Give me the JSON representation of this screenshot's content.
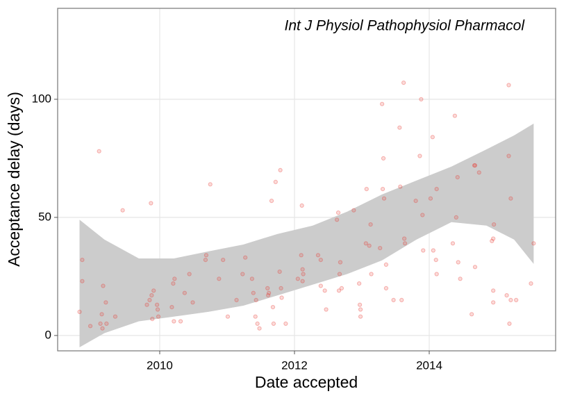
{
  "chart_data": {
    "type": "scatter",
    "annotation": "Int J Physiol Pathophysiol Pharmacol",
    "x_label": "Date accepted",
    "y_label": "Acceptance delay (days)",
    "xlim": [
      2008.485,
      2015.876
    ],
    "ylim": [
      -6.5,
      138.5
    ],
    "xticks": [
      2010,
      2012,
      2014
    ],
    "yticks": [
      0,
      50,
      100
    ],
    "grid": true,
    "color": "#e8352e",
    "x": [
      2008.81,
      2008.85,
      2008.85,
      2008.97,
      2009.1,
      2009.12,
      2009.14,
      2009.15,
      2009.16,
      2009.2,
      2009.21,
      2009.34,
      2009.45,
      2009.81,
      2009.85,
      2009.87,
      2009.88,
      2009.89,
      2009.91,
      2009.96,
      2009.97,
      2009.98,
      2010.18,
      2010.2,
      2010.22,
      2010.21,
      2010.31,
      2010.37,
      2010.44,
      2010.49,
      2010.68,
      2010.69,
      2010.75,
      2010.88,
      2010.94,
      2011.01,
      2011.14,
      2011.23,
      2011.27,
      2011.37,
      2011.39,
      2011.42,
      2011.43,
      2011.45,
      2011.48,
      2011.6,
      2011.61,
      2011.62,
      2011.66,
      2011.68,
      2011.69,
      2011.72,
      2011.78,
      2011.79,
      2011.8,
      2011.81,
      2011.87,
      2012.05,
      2012.1,
      2012.11,
      2012.12,
      2012.12,
      2012.13,
      2012.35,
      2012.39,
      2012.39,
      2012.45,
      2012.47,
      2012.63,
      2012.65,
      2012.66,
      2012.67,
      2012.68,
      2012.7,
      2012.88,
      2012.96,
      2012.97,
      2012.98,
      2012.98,
      2013.06,
      2013.07,
      2013.11,
      2013.13,
      2013.14,
      2013.27,
      2013.3,
      2013.31,
      2013.32,
      2013.33,
      2013.36,
      2013.36,
      2013.47,
      2013.56,
      2013.57,
      2013.59,
      2013.62,
      2013.63,
      2013.64,
      2013.8,
      2013.86,
      2013.88,
      2013.9,
      2013.91,
      2014.02,
      2014.05,
      2014.06,
      2014.1,
      2014.11,
      2014.11,
      2014.35,
      2014.38,
      2014.4,
      2014.42,
      2014.43,
      2014.46,
      2014.63,
      2014.67,
      2014.68,
      2014.68,
      2014.74,
      2014.93,
      2014.95,
      2014.95,
      2014.95,
      2014.96,
      2015.15,
      2015.18,
      2015.18,
      2015.19,
      2015.21,
      2015.21,
      2015.29,
      2015.51,
      2015.55
    ],
    "values": [
      10,
      32,
      23,
      4,
      78,
      5,
      9,
      3,
      21,
      14,
      5,
      8,
      53,
      13,
      15,
      56,
      17,
      7,
      19,
      13,
      11,
      8,
      12,
      22,
      24,
      6,
      6,
      18,
      26,
      14,
      32,
      34,
      64,
      24,
      32,
      8,
      15,
      26,
      33,
      24,
      18,
      8,
      15,
      5,
      3,
      20,
      17,
      18,
      57,
      12,
      5,
      65,
      27,
      70,
      20,
      16,
      5,
      24,
      34,
      55,
      23,
      28,
      26,
      34,
      32,
      21,
      19,
      11,
      49,
      52,
      19,
      26,
      31,
      20,
      53,
      22,
      13,
      11,
      8,
      39,
      62,
      38,
      47,
      26,
      37,
      98,
      62,
      75,
      58,
      30,
      20,
      15,
      88,
      63,
      15,
      107,
      41,
      39,
      57,
      76,
      100,
      51,
      36,
      58,
      84,
      36,
      32,
      62,
      26,
      39,
      93,
      50,
      67,
      31,
      24,
      9,
      72,
      72,
      29,
      69,
      40,
      41,
      19,
      14,
      47,
      17,
      106,
      76,
      5,
      58,
      15,
      15,
      22,
      39
    ],
    "band": {
      "color": "#cccccc",
      "x": [
        2008.81,
        2009.18,
        2009.69,
        2010.21,
        2010.72,
        2011.24,
        2011.75,
        2012.27,
        2012.78,
        2013.3,
        2013.81,
        2014.33,
        2014.85,
        2015.26,
        2015.55
      ],
      "upper": [
        49,
        40.6,
        32.6,
        32.6,
        35.6,
        38.5,
        43,
        46.5,
        52.4,
        59.7,
        65.6,
        71.5,
        78.8,
        84.7,
        89.7
      ],
      "lower": [
        -5,
        1,
        6,
        8,
        10,
        12.6,
        17,
        21.5,
        26,
        31.8,
        40.6,
        48,
        46.5,
        40.6,
        30.3
      ]
    }
  }
}
